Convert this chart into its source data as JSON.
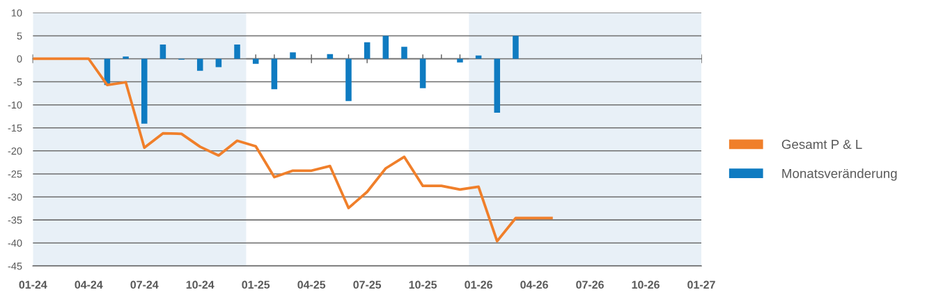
{
  "chart_data": {
    "type": "bar",
    "x": [
      "2024-01",
      "2024-02",
      "2024-03",
      "2024-04",
      "2024-05",
      "2024-06",
      "2024-07",
      "2024-08",
      "2024-09",
      "2024-10",
      "2024-11",
      "2024-12",
      "2025-01",
      "2025-02",
      "2025-03",
      "2025-04",
      "2025-05",
      "2025-06",
      "2025-07",
      "2025-08",
      "2025-09",
      "2025-10",
      "2025-11",
      "2025-12",
      "2026-01",
      "2026-02",
      "2026-03",
      "2026-04",
      "2026-05"
    ],
    "series": [
      {
        "name": "Gesamt P & L",
        "type": "line",
        "color": "#f07f2a",
        "values": [
          0,
          0,
          0,
          0,
          -5.7,
          -5.1,
          -19.3,
          -16.2,
          -16.3,
          -19.1,
          -21.0,
          -17.8,
          -19.0,
          -25.7,
          -24.3,
          -24.3,
          -23.3,
          -32.4,
          -28.9,
          -23.8,
          -21.3,
          -27.6,
          -27.6,
          -28.4,
          -27.8,
          -39.6,
          -34.6,
          -34.6,
          -34.6
        ]
      },
      {
        "name": "Monatsveränderung",
        "color": "#0f7bc1",
        "values": [
          null,
          null,
          null,
          null,
          -5.7,
          0.5,
          -14.1,
          3.1,
          -0.2,
          -2.6,
          -1.8,
          3.1,
          -1.1,
          -6.6,
          1.4,
          null,
          1.0,
          -9.2,
          3.6,
          5.0,
          2.6,
          -6.4,
          null,
          -0.8,
          0.7,
          -11.7,
          5.0,
          null,
          null
        ]
      }
    ],
    "xlim": [
      "2024-01",
      "2027-01"
    ],
    "xticks": [
      {
        "value": "2024-01",
        "label": "01-24"
      },
      {
        "value": "2024-02",
        "label": null
      },
      {
        "value": "2024-03",
        "label": null
      },
      {
        "value": "2024-04",
        "label": "04-24"
      },
      {
        "value": "2024-05",
        "label": null
      },
      {
        "value": "2024-06",
        "label": null
      },
      {
        "value": "2024-07",
        "label": "07-24"
      },
      {
        "value": "2024-08",
        "label": null
      },
      {
        "value": "2024-09",
        "label": null
      },
      {
        "value": "2024-10",
        "label": "10-24"
      },
      {
        "value": "2024-11",
        "label": null
      },
      {
        "value": "2024-12",
        "label": null
      },
      {
        "value": "2025-01",
        "label": "01-25"
      },
      {
        "value": "2025-02",
        "label": null
      },
      {
        "value": "2025-03",
        "label": null
      },
      {
        "value": "2025-04",
        "label": "04-25"
      },
      {
        "value": "2025-05",
        "label": null
      },
      {
        "value": "2025-06",
        "label": null
      },
      {
        "value": "2025-07",
        "label": "07-25"
      },
      {
        "value": "2025-08",
        "label": null
      },
      {
        "value": "2025-09",
        "label": null
      },
      {
        "value": "2025-10",
        "label": "10-25"
      },
      {
        "value": "2025-11",
        "label": null
      },
      {
        "value": "2025-12",
        "label": null
      },
      {
        "value": "2026-01",
        "label": "01-26"
      },
      {
        "value": "2026-02",
        "label": null
      },
      {
        "value": "2026-03",
        "label": null
      },
      {
        "value": "2026-04",
        "label": "04-26"
      },
      {
        "value": "2026-05",
        "label": null
      },
      {
        "value": "2026-06",
        "label": null
      },
      {
        "value": "2026-07",
        "label": "07-26"
      },
      {
        "value": "2026-08",
        "label": null
      },
      {
        "value": "2026-09",
        "label": null
      },
      {
        "value": "2026-10",
        "label": "10-26"
      },
      {
        "value": "2026-11",
        "label": null
      },
      {
        "value": "2026-12",
        "label": null
      },
      {
        "value": "2027-01",
        "label": "01-27"
      }
    ],
    "ylim": [
      -45,
      10
    ],
    "yticks": [
      -45,
      -40,
      -35,
      -30,
      -25,
      -20,
      -15,
      -10,
      -5,
      0,
      5,
      10
    ],
    "grid": "y",
    "legend": "right",
    "bands": [
      {
        "axis": "x",
        "from": "2024-01",
        "to": "2024-12-16",
        "color": "#e8f0f7"
      },
      {
        "axis": "x",
        "from": "2025-12-16",
        "to": "2027-01",
        "color": "#e8f0f7"
      }
    ]
  }
}
